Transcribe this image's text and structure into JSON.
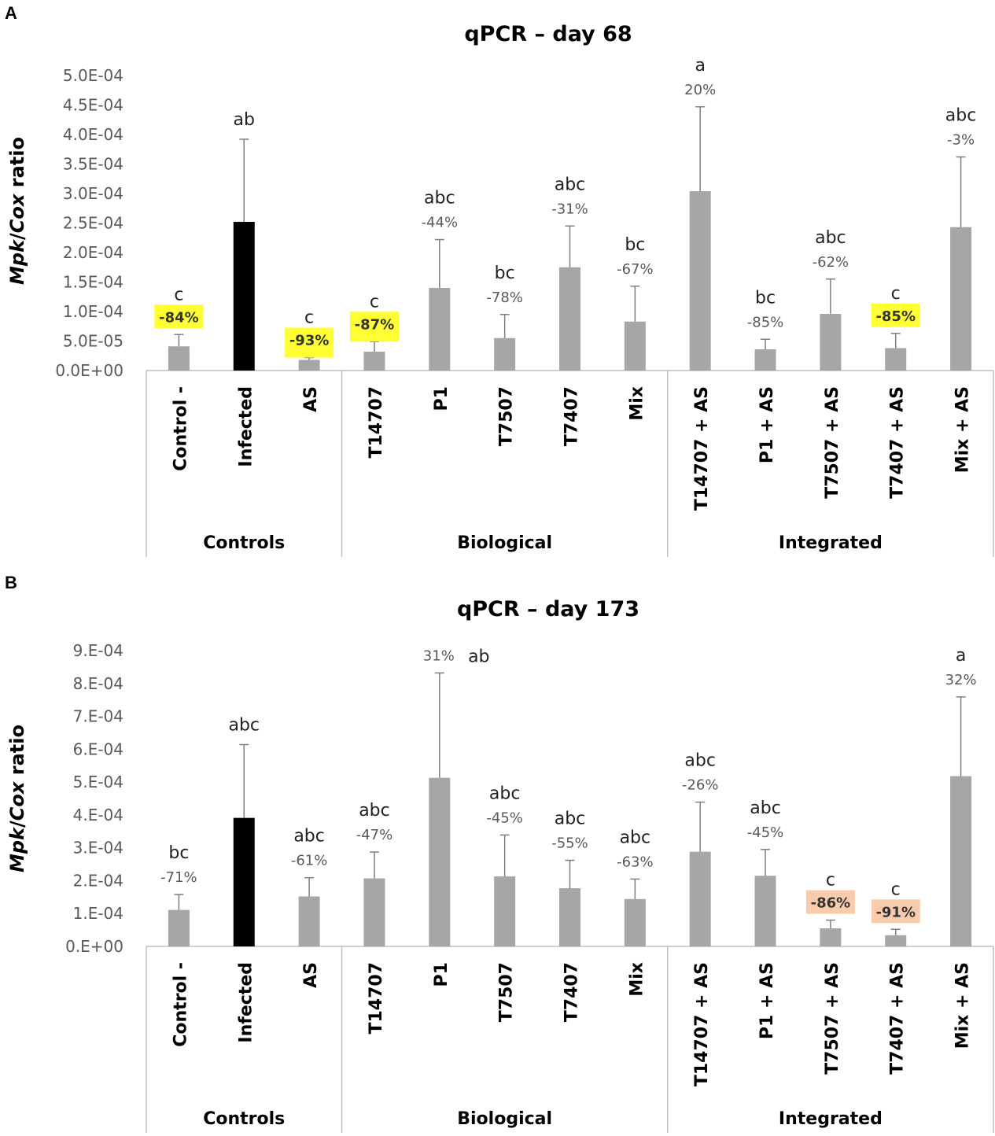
{
  "colors": {
    "bar": "#a6a6a6",
    "bar_dark": "#000000",
    "error_bar": "#7f7f7f",
    "axis": "#bfbfbf",
    "highlight_yellow": "#ffff33",
    "highlight_orange": "#f8cbad"
  },
  "chart_data": [
    {
      "panel": "A",
      "type": "bar",
      "title": "qPCR – day 68",
      "ylabel_italic_1": "Mpk",
      "ylabel_sep": "/",
      "ylabel_italic_2": "Cox",
      "ylabel_rest": " ratio",
      "ylim": [
        0,
        0.0005
      ],
      "yticks": [
        0,
        5e-05,
        0.0001,
        0.00015,
        0.0002,
        0.00025,
        0.0003,
        0.00035,
        0.0004,
        0.00045,
        0.0005
      ],
      "ytick_labels": [
        "0.0E+00",
        "5.0E-05",
        "1.0E-04",
        "1.5E-04",
        "2.0E-04",
        "2.5E-04",
        "3.0E-04",
        "3.5E-04",
        "4.0E-04",
        "4.5E-04",
        "5.0E-04"
      ],
      "categories": [
        "Control -",
        "Infected",
        "AS",
        "T14707",
        "P1",
        "T7507",
        "T7407",
        "Mix",
        "T14707 + AS",
        "P1 + AS",
        "T7507 + AS",
        "T7407 + AS",
        "Mix + AS"
      ],
      "values": [
        4.1e-05,
        0.000252,
        1.8e-05,
        3.2e-05,
        0.00014,
        5.5e-05,
        0.000175,
        8.3e-05,
        0.000304,
        3.6e-05,
        9.6e-05,
        3.8e-05,
        0.000243
      ],
      "errors": [
        2e-05,
        0.00014,
        4e-06,
        1.7e-05,
        8.2e-05,
        4e-05,
        7e-05,
        6e-05,
        0.000143,
        1.7e-05,
        5.9e-05,
        2.5e-05,
        0.000119
      ],
      "dark": [
        false,
        true,
        false,
        false,
        false,
        false,
        false,
        false,
        false,
        false,
        false,
        false,
        false
      ],
      "letters": [
        "c",
        "ab",
        "c",
        "c",
        "abc",
        "bc",
        "abc",
        "bc",
        "a",
        "bc",
        "abc",
        "c",
        "abc"
      ],
      "percents": [
        "-84%",
        "",
        "-93%",
        "-87%",
        "-44%",
        "-78%",
        "-31%",
        "-67%",
        "20%",
        "-85%",
        "-62%",
        "-85%",
        "-3%"
      ],
      "highlight": [
        "yellow",
        "",
        "yellow",
        "yellow",
        "",
        "",
        "",
        "",
        "",
        "",
        "",
        "yellow",
        ""
      ],
      "groups": [
        {
          "label": "Controls",
          "start": 0,
          "end": 2
        },
        {
          "label": "Biological",
          "start": 3,
          "end": 7
        },
        {
          "label": "Integrated",
          "start": 8,
          "end": 12
        }
      ]
    },
    {
      "panel": "B",
      "type": "bar",
      "title": "qPCR – day 173",
      "ylabel_italic_1": "Mpk",
      "ylabel_sep": "/",
      "ylabel_italic_2": "Cox",
      "ylabel_rest": " ratio",
      "ylim": [
        0,
        0.0009
      ],
      "yticks": [
        0,
        0.0001,
        0.0002,
        0.0003,
        0.0004,
        0.0005,
        0.0006,
        0.0007,
        0.0008,
        0.0009
      ],
      "ytick_labels": [
        "0.E+00",
        "1.E-04",
        "2.E-04",
        "3.E-04",
        "4.E-04",
        "5.E-04",
        "6.E-04",
        "7.E-04",
        "8.E-04",
        "9.E-04"
      ],
      "categories": [
        "Control -",
        "Infected",
        "AS",
        "T14707",
        "P1",
        "T7507",
        "T7407",
        "Mix",
        "T14707 + AS",
        "P1 + AS",
        "T7507 + AS",
        "T7407 + AS",
        "Mix + AS"
      ],
      "values": [
        0.000111,
        0.000391,
        0.000152,
        0.000207,
        0.000513,
        0.000213,
        0.000177,
        0.000144,
        0.000288,
        0.000215,
        5.5e-05,
        3.4e-05,
        0.000518
      ],
      "errors": [
        4.7e-05,
        0.000223,
        5.7e-05,
        8e-05,
        0.000319,
        0.000126,
        8.5e-05,
        6.1e-05,
        0.000151,
        8e-05,
        2.5e-05,
        1.8e-05,
        0.000241
      ],
      "dark": [
        false,
        true,
        false,
        false,
        false,
        false,
        false,
        false,
        false,
        false,
        false,
        false,
        false
      ],
      "letters": [
        "bc",
        "abc",
        "abc",
        "abc",
        "ab",
        "abc",
        "abc",
        "abc",
        "abc",
        "abc",
        "c",
        "c",
        "a"
      ],
      "percents": [
        "-71%",
        "",
        "-61%",
        "-47%",
        "31%",
        "-45%",
        "-55%",
        "-63%",
        "-26%",
        "-45%",
        "-86%",
        "-91%",
        "32%"
      ],
      "highlight": [
        "",
        "",
        "",
        "",
        "",
        "",
        "",
        "",
        "",
        "",
        "orange",
        "orange",
        ""
      ],
      "groups": [
        {
          "label": "Controls",
          "start": 0,
          "end": 2
        },
        {
          "label": "Biological",
          "start": 3,
          "end": 7
        },
        {
          "label": "Integrated",
          "start": 8,
          "end": 12
        }
      ]
    }
  ]
}
